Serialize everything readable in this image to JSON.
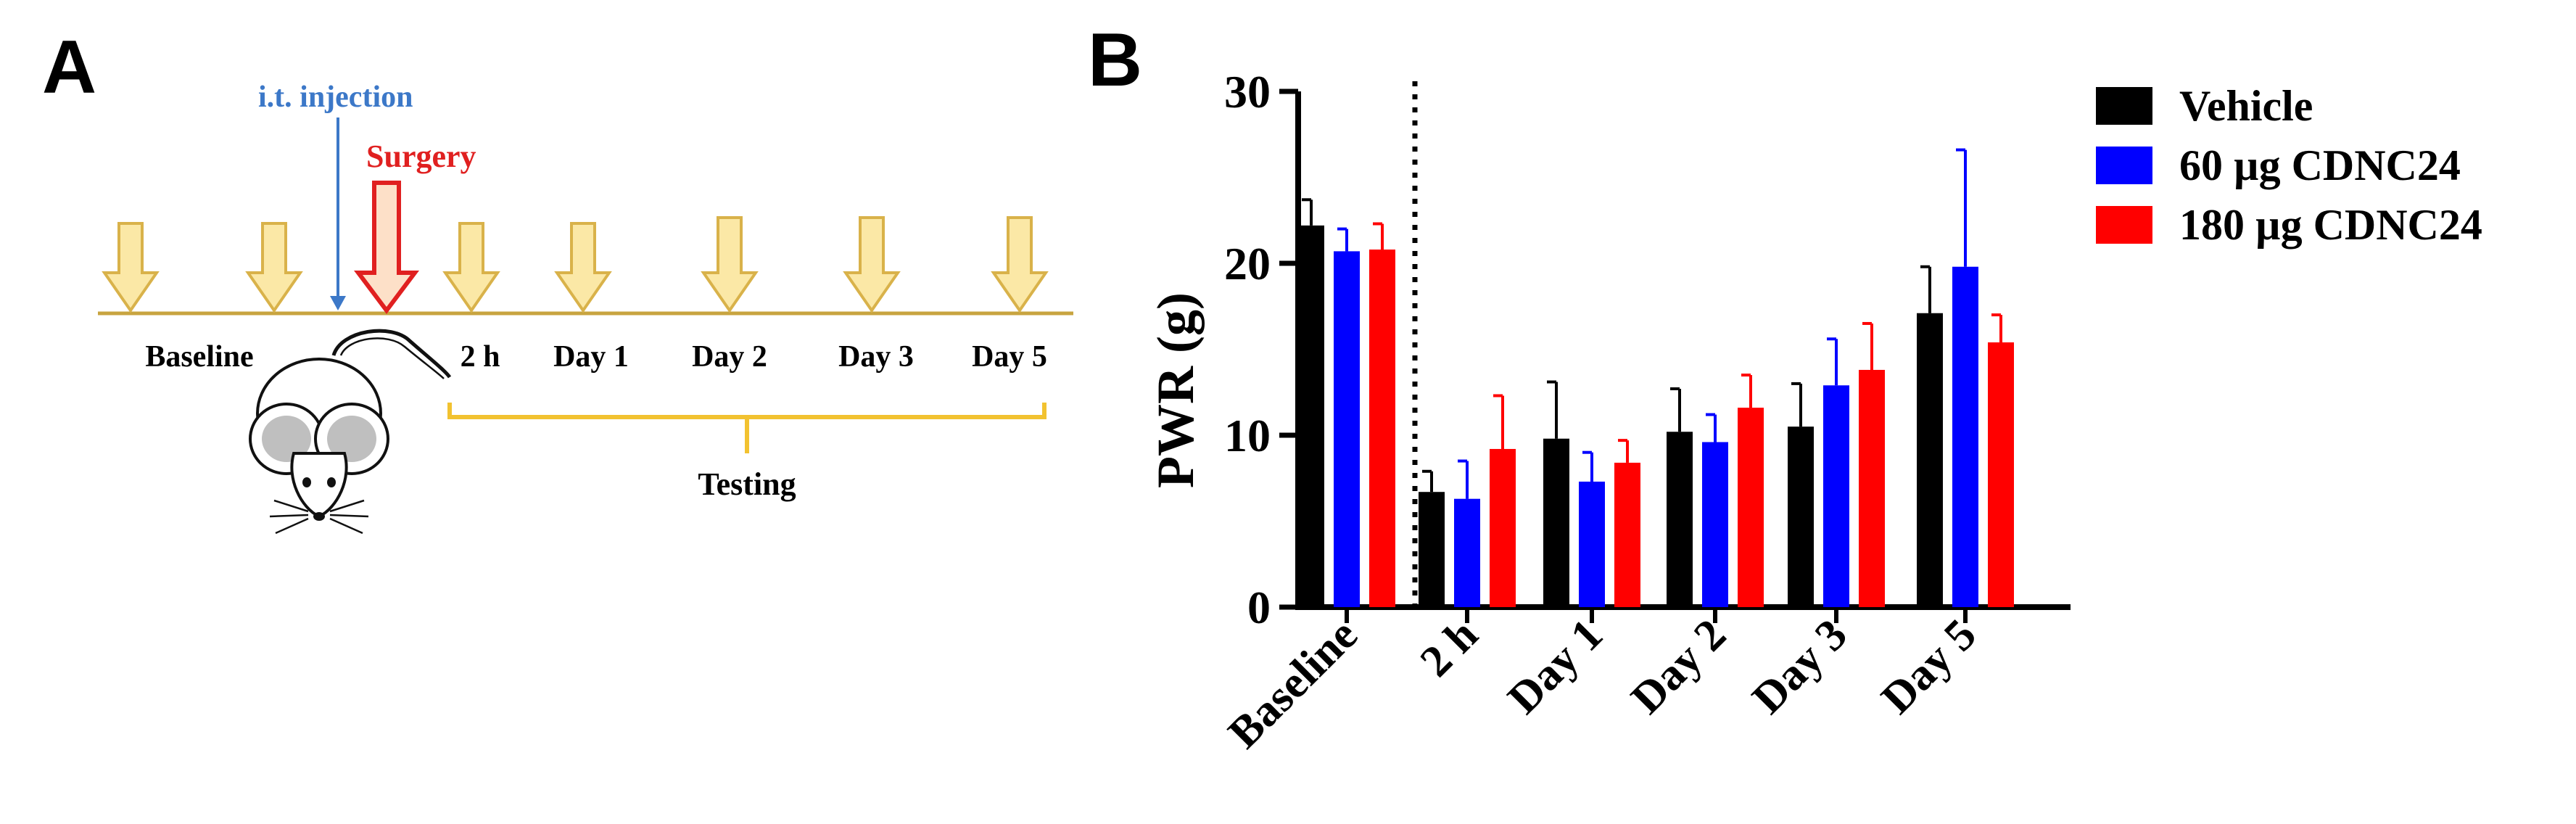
{
  "panel_a": {
    "letter": "A",
    "injection_label": "i.t. injection",
    "surgery_label": "Surgery",
    "timepoints": [
      "Baseline",
      "2 h",
      "Day 1",
      "Day 2",
      "Day 3",
      "Day 5"
    ],
    "testing_label": "Testing",
    "colors": {
      "arrow_fill": "#fbe8a6",
      "arrow_stroke": "#d9b24a",
      "timeline": "#c8a440",
      "injection": "#3c78c8",
      "surgery": "#e02020",
      "bracket": "#f2c230"
    }
  },
  "panel_b": {
    "letter": "B"
  },
  "chart_data": {
    "type": "bar",
    "title": "",
    "xlabel": "",
    "ylabel": "PWR (g)",
    "ylim": [
      0,
      30
    ],
    "yticks": [
      0,
      10,
      20,
      30
    ],
    "categories": [
      "Baseline",
      "2 h",
      "Day 1",
      "Day 2",
      "Day 3",
      "Day 5"
    ],
    "series": [
      {
        "name": "Vehicle",
        "color": "#000000",
        "values": [
          22.2,
          6.7,
          9.8,
          10.2,
          10.5,
          17.1
        ],
        "errors": [
          1.5,
          1.2,
          3.3,
          2.5,
          2.5,
          2.7
        ]
      },
      {
        "name": "60 µg CDNC24",
        "color": "#0000ff",
        "values": [
          20.7,
          6.3,
          7.3,
          9.6,
          12.9,
          19.8
        ],
        "errors": [
          1.3,
          2.2,
          1.7,
          1.6,
          2.7,
          6.8
        ]
      },
      {
        "name": "180 µg CDNC24",
        "color": "#ff0000",
        "values": [
          20.8,
          9.2,
          8.4,
          11.6,
          13.8,
          15.4
        ],
        "errors": [
          1.5,
          3.1,
          1.3,
          1.9,
          2.7,
          1.6
        ]
      }
    ],
    "divider_after_category": "Baseline",
    "legend_position": "top-right"
  }
}
